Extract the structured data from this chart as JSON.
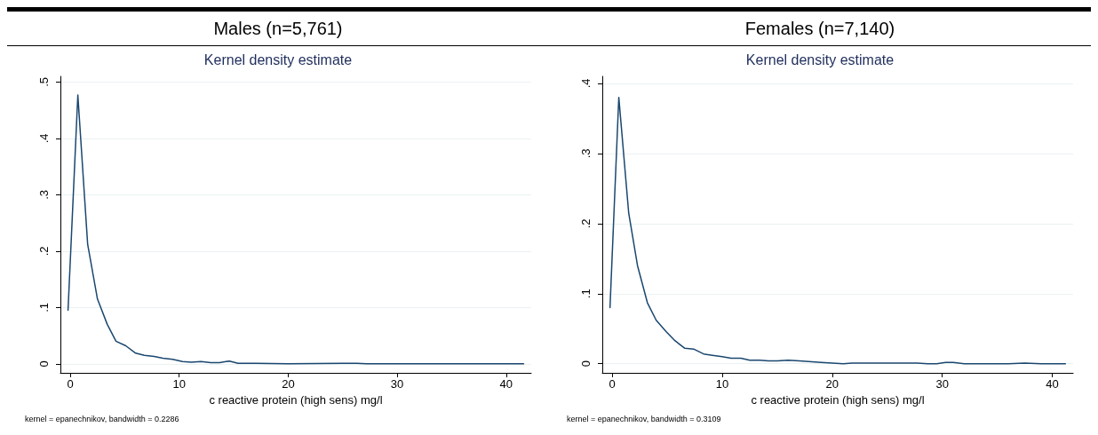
{
  "chart_data": [
    {
      "type": "line",
      "title": "Males (n=5,761)",
      "subtitle": "Kernel density estimate",
      "xlabel": "c reactive protein (high sens) mg/l",
      "annotations": [
        "kernel = epanechnikov, bandwidth = 0.2286"
      ],
      "x": [
        -0.2,
        0.7,
        1.6,
        2.5,
        3.4,
        4.2,
        5.1,
        6,
        6.8,
        7.7,
        8.5,
        9.4,
        10.3,
        11.1,
        12,
        12.9,
        13.7,
        14.6,
        15.4,
        17,
        20,
        25,
        26.3,
        27.2,
        30,
        35,
        39.5,
        41.6
      ],
      "series": [
        {
          "color": "#1a476f",
          "values": [
            0.095,
            0.477,
            0.212,
            0.115,
            0.07,
            0.04,
            0.032,
            0.019,
            0.015,
            0.013,
            0.01,
            0.008,
            0.004,
            0.003,
            0.004,
            0.002,
            0.002,
            0.005,
            0.001,
            0.001,
            0,
            0.001,
            0.001,
            0,
            0,
            0,
            0,
            0
          ]
        }
      ],
      "xlim": [
        -0.9,
        42.3
      ],
      "xticks": [
        0,
        10,
        20,
        30,
        40
      ],
      "ylim": [
        -0.016,
        0.51
      ],
      "yticks": [
        0,
        {
          "value": 0.1,
          "label": ".1"
        },
        {
          "value": 0.2,
          "label": ".2"
        },
        {
          "value": 0.3,
          "label": ".3"
        },
        {
          "value": 0.4,
          "label": ".4"
        },
        {
          "value": 0.5,
          "label": ".5"
        }
      ],
      "grid": "y",
      "marker": "none",
      "line_style": "solid"
    },
    {
      "type": "line",
      "title": "Females (n=7,140)",
      "subtitle": "Kernel density estimate",
      "xlabel": "c reactive protein (high sens) mg/l",
      "annotations": [
        "kernel = epanechnikov, bandwidth = 0.3109"
      ],
      "x": [
        -0.2,
        0.6,
        1.5,
        2.3,
        3.2,
        4,
        4.9,
        5.7,
        6.6,
        7.4,
        8.3,
        9.1,
        10,
        10.8,
        11.7,
        12.5,
        13.4,
        14.2,
        15,
        16,
        17,
        19,
        21,
        21.8,
        23,
        25,
        27.7,
        28.7,
        29.5,
        30.3,
        31,
        32,
        35,
        36,
        37.5,
        39,
        40,
        41.2
      ],
      "series": [
        {
          "color": "#1a476f",
          "values": [
            0.08,
            0.38,
            0.215,
            0.14,
            0.087,
            0.062,
            0.046,
            0.033,
            0.022,
            0.021,
            0.014,
            0.012,
            0.01,
            0.008,
            0.008,
            0.005,
            0.005,
            0.004,
            0.004,
            0.005,
            0.004,
            0.002,
            0,
            0.001,
            0.001,
            0.001,
            0.001,
            0,
            0,
            0.002,
            0.002,
            0,
            0,
            0,
            0.001,
            0,
            0,
            0
          ]
        }
      ],
      "xlim": [
        -0.9,
        41.9
      ],
      "xticks": [
        0,
        10,
        20,
        30,
        40
      ],
      "ylim": [
        -0.013,
        0.41
      ],
      "yticks": [
        0,
        {
          "value": 0.1,
          "label": ".1"
        },
        {
          "value": 0.2,
          "label": ".2"
        },
        {
          "value": 0.3,
          "label": ".3"
        },
        {
          "value": 0.4,
          "label": ".4"
        }
      ],
      "grid": "y",
      "marker": "none",
      "line_style": "solid"
    }
  ]
}
